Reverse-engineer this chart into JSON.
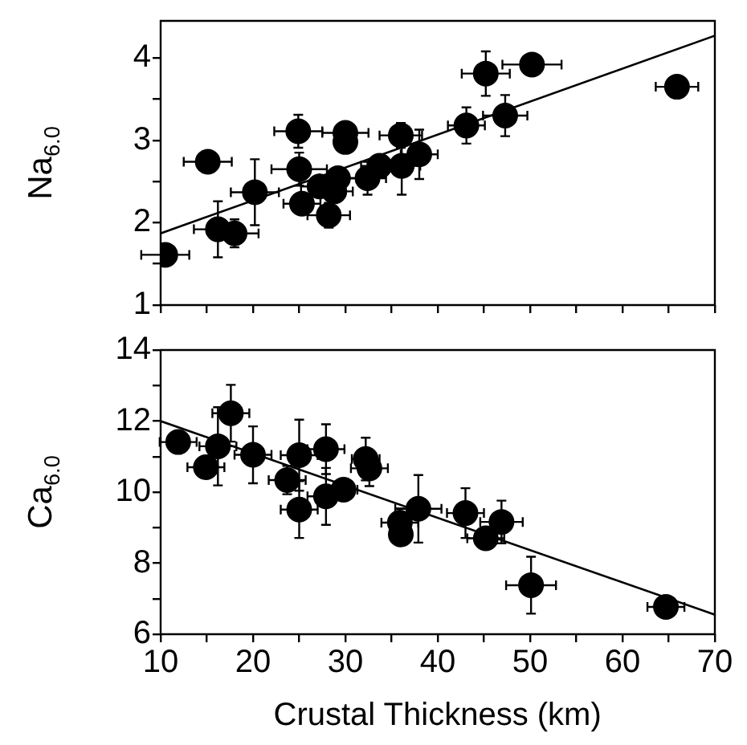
{
  "chart_data": [
    {
      "type": "scatter",
      "ylabel": "Na$_{6.0}$",
      "xlim": [
        10,
        70
      ],
      "ylim": [
        1,
        4.45
      ],
      "xticks": [
        {
          "value": 10,
          "label": null
        },
        {
          "value": 15,
          "label": null
        },
        {
          "value": 20,
          "label": null
        },
        {
          "value": 25,
          "label": null
        },
        {
          "value": 30,
          "label": null
        },
        {
          "value": 35,
          "label": null
        },
        {
          "value": 40,
          "label": null
        },
        {
          "value": 45,
          "label": null
        },
        {
          "value": 50,
          "label": null
        },
        {
          "value": 55,
          "label": null
        },
        {
          "value": 60,
          "label": null
        },
        {
          "value": 65,
          "label": null
        },
        {
          "value": 70,
          "label": null
        }
      ],
      "yticks": [
        1,
        {
          "value": 1.5,
          "label": null
        },
        2,
        {
          "value": 2.5,
          "label": null
        },
        3,
        {
          "value": 3.5,
          "label": null
        },
        4
      ],
      "tick_labels": "y",
      "series": [
        {
          "marker": "circle",
          "color": "#000000",
          "x": [
            10.5,
            15.1,
            16.2,
            18.0,
            20.2,
            24.9,
            25.0,
            25.3,
            27.2,
            28.2,
            28.8,
            29.2,
            30.0,
            30.0,
            32.4,
            33.7,
            36.0,
            36.1,
            38.0,
            43.1,
            45.2,
            47.3,
            50.2,
            65.9
          ],
          "values": [
            1.61,
            2.74,
            1.92,
            1.87,
            2.37,
            3.11,
            2.65,
            2.23,
            2.44,
            2.09,
            2.38,
            2.54,
            3.09,
            2.98,
            2.54,
            2.69,
            3.06,
            2.69,
            2.83,
            3.18,
            3.81,
            3.3,
            3.92,
            3.65
          ],
          "errors": [
            null,
            null,
            0.34,
            0.17,
            0.4,
            0.2,
            0.2,
            0.1,
            0.1,
            0.15,
            0.1,
            0.1,
            0.1,
            0.1,
            0.2,
            0.1,
            0.15,
            0.35,
            0.3,
            0.22,
            0.27,
            0.25,
            null,
            null
          ],
          "xerrors": [
            2.6,
            2.6,
            2.6,
            2.6,
            2.6,
            2.6,
            3,
            2,
            2,
            2.3,
            2,
            2,
            2.5,
            null,
            2,
            2,
            2.3,
            2,
            2,
            2,
            2.6,
            2.4,
            3.2,
            2.3
          ]
        },
        {
          "type": "line",
          "color": "#000000",
          "x": [
            10,
            70
          ],
          "values": [
            1.87,
            4.27
          ]
        }
      ]
    },
    {
      "type": "scatter",
      "xlabel": "Crustal Thickness (km)",
      "ylabel": "Ca$_{6.0}$",
      "xlim": [
        10,
        70
      ],
      "ylim": [
        6,
        14
      ],
      "xticks": [
        10,
        {
          "value": 15,
          "label": null
        },
        20,
        {
          "value": 25,
          "label": null
        },
        30,
        {
          "value": 35,
          "label": null
        },
        40,
        {
          "value": 45,
          "label": null
        },
        50,
        {
          "value": 55,
          "label": null
        },
        60,
        {
          "value": 65,
          "label": null
        },
        70
      ],
      "yticks": [
        6,
        {
          "value": 7,
          "label": null
        },
        8,
        {
          "value": 9,
          "label": null
        },
        10,
        {
          "value": 11,
          "label": null
        },
        12,
        {
          "value": 13,
          "label": null
        },
        14
      ],
      "series": [
        {
          "marker": "circle",
          "color": "#000000",
          "x": [
            11.9,
            14.9,
            16.2,
            17.6,
            20.0,
            23.7,
            25.0,
            25.0,
            27.9,
            27.9,
            29.8,
            32.2,
            32.6,
            35.9,
            36.0,
            37.9,
            43.0,
            45.2,
            46.9,
            50.1,
            64.7
          ],
          "values": [
            11.41,
            10.7,
            11.29,
            12.22,
            11.05,
            10.34,
            11.04,
            9.51,
            11.21,
            9.88,
            10.07,
            10.93,
            10.67,
            9.14,
            8.81,
            9.53,
            9.41,
            8.7,
            9.16,
            7.38,
            6.77
          ],
          "errors": [
            0.3,
            null,
            1.1,
            0.8,
            0.8,
            0.4,
            1.0,
            0.8,
            0.7,
            0.8,
            0.3,
            0.6,
            0.5,
            0.4,
            0.3,
            0.95,
            0.7,
            0.3,
            0.6,
            0.8,
            null
          ],
          "xerrors": [
            2,
            2,
            2,
            2,
            2,
            2,
            2,
            2,
            2,
            2,
            1.5,
            1.5,
            2,
            2,
            null,
            2.5,
            2,
            2,
            2.3,
            2.7,
            2
          ]
        },
        {
          "type": "line",
          "color": "#000000",
          "x": [
            10,
            70
          ],
          "values": [
            12.0,
            6.55
          ]
        }
      ]
    }
  ]
}
